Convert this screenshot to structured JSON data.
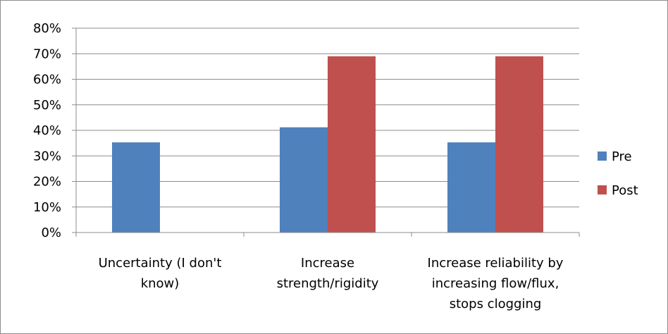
{
  "chart_data": {
    "type": "bar",
    "categories": [
      [
        "Uncertainty  (I don't",
        "know)"
      ],
      [
        "Increase",
        "strength/rigidity"
      ],
      [
        "Increase reliability by",
        "increasing flow/flux,",
        "stops clogging"
      ]
    ],
    "series": [
      {
        "name": "Pre",
        "values": [
          35.3,
          41.2,
          35.3
        ],
        "color": "#4f81bd"
      },
      {
        "name": "Post",
        "values": [
          0,
          69,
          69
        ],
        "color": "#c0504d"
      }
    ],
    "ylim": [
      0,
      80
    ],
    "yticks": [
      "0%",
      "10%",
      "20%",
      "30%",
      "40%",
      "50%",
      "60%",
      "70%",
      "80%"
    ],
    "grid": true,
    "legend": "right"
  }
}
